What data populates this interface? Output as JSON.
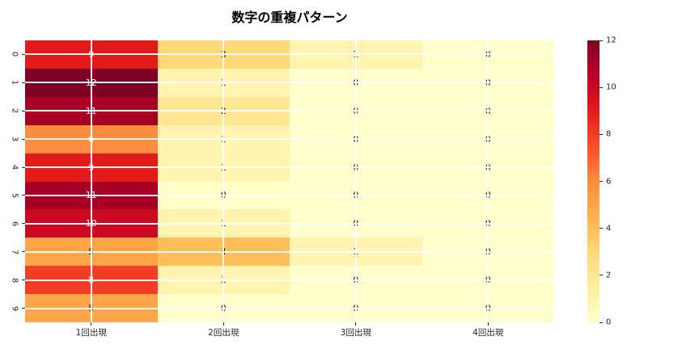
{
  "title": "数字の重複パターン",
  "chart_data": {
    "type": "heatmap",
    "title": "数字の重複パターン",
    "row_labels": [
      "0",
      "1",
      "2",
      "3",
      "4",
      "5",
      "6",
      "7",
      "8",
      "9"
    ],
    "column_labels": [
      "1回出現",
      "2回出現",
      "3回出現",
      "4回出現"
    ],
    "matrix": [
      [
        9,
        3,
        1,
        0
      ],
      [
        12,
        1,
        0,
        0
      ],
      [
        11,
        2,
        0,
        0
      ],
      [
        6,
        1,
        0,
        0
      ],
      [
        9,
        1,
        0,
        0
      ],
      [
        11,
        0,
        0,
        0
      ],
      [
        10,
        1,
        0,
        0
      ],
      [
        5,
        4,
        1,
        0
      ],
      [
        8,
        1,
        0,
        0
      ],
      [
        5,
        0,
        0,
        0
      ]
    ],
    "vmin": 0,
    "vmax": 12,
    "colormap_name": "YlOrRd",
    "colormap_stops": [
      "#ffffcc",
      "#ffeda0",
      "#fed976",
      "#feb24c",
      "#fd8d3c",
      "#fc4e2a",
      "#e31a1c",
      "#bd0026",
      "#800026"
    ],
    "annotation_light_text_color": "#ffffff",
    "annotation_dark_text_color": "#1a1a1a",
    "annotation_white_text_min_value": 6,
    "colorbar_ticks": [
      "12",
      "10",
      "8",
      "6",
      "4",
      "2",
      "0"
    ],
    "grid": true,
    "legend_position": "right-colorbar"
  }
}
